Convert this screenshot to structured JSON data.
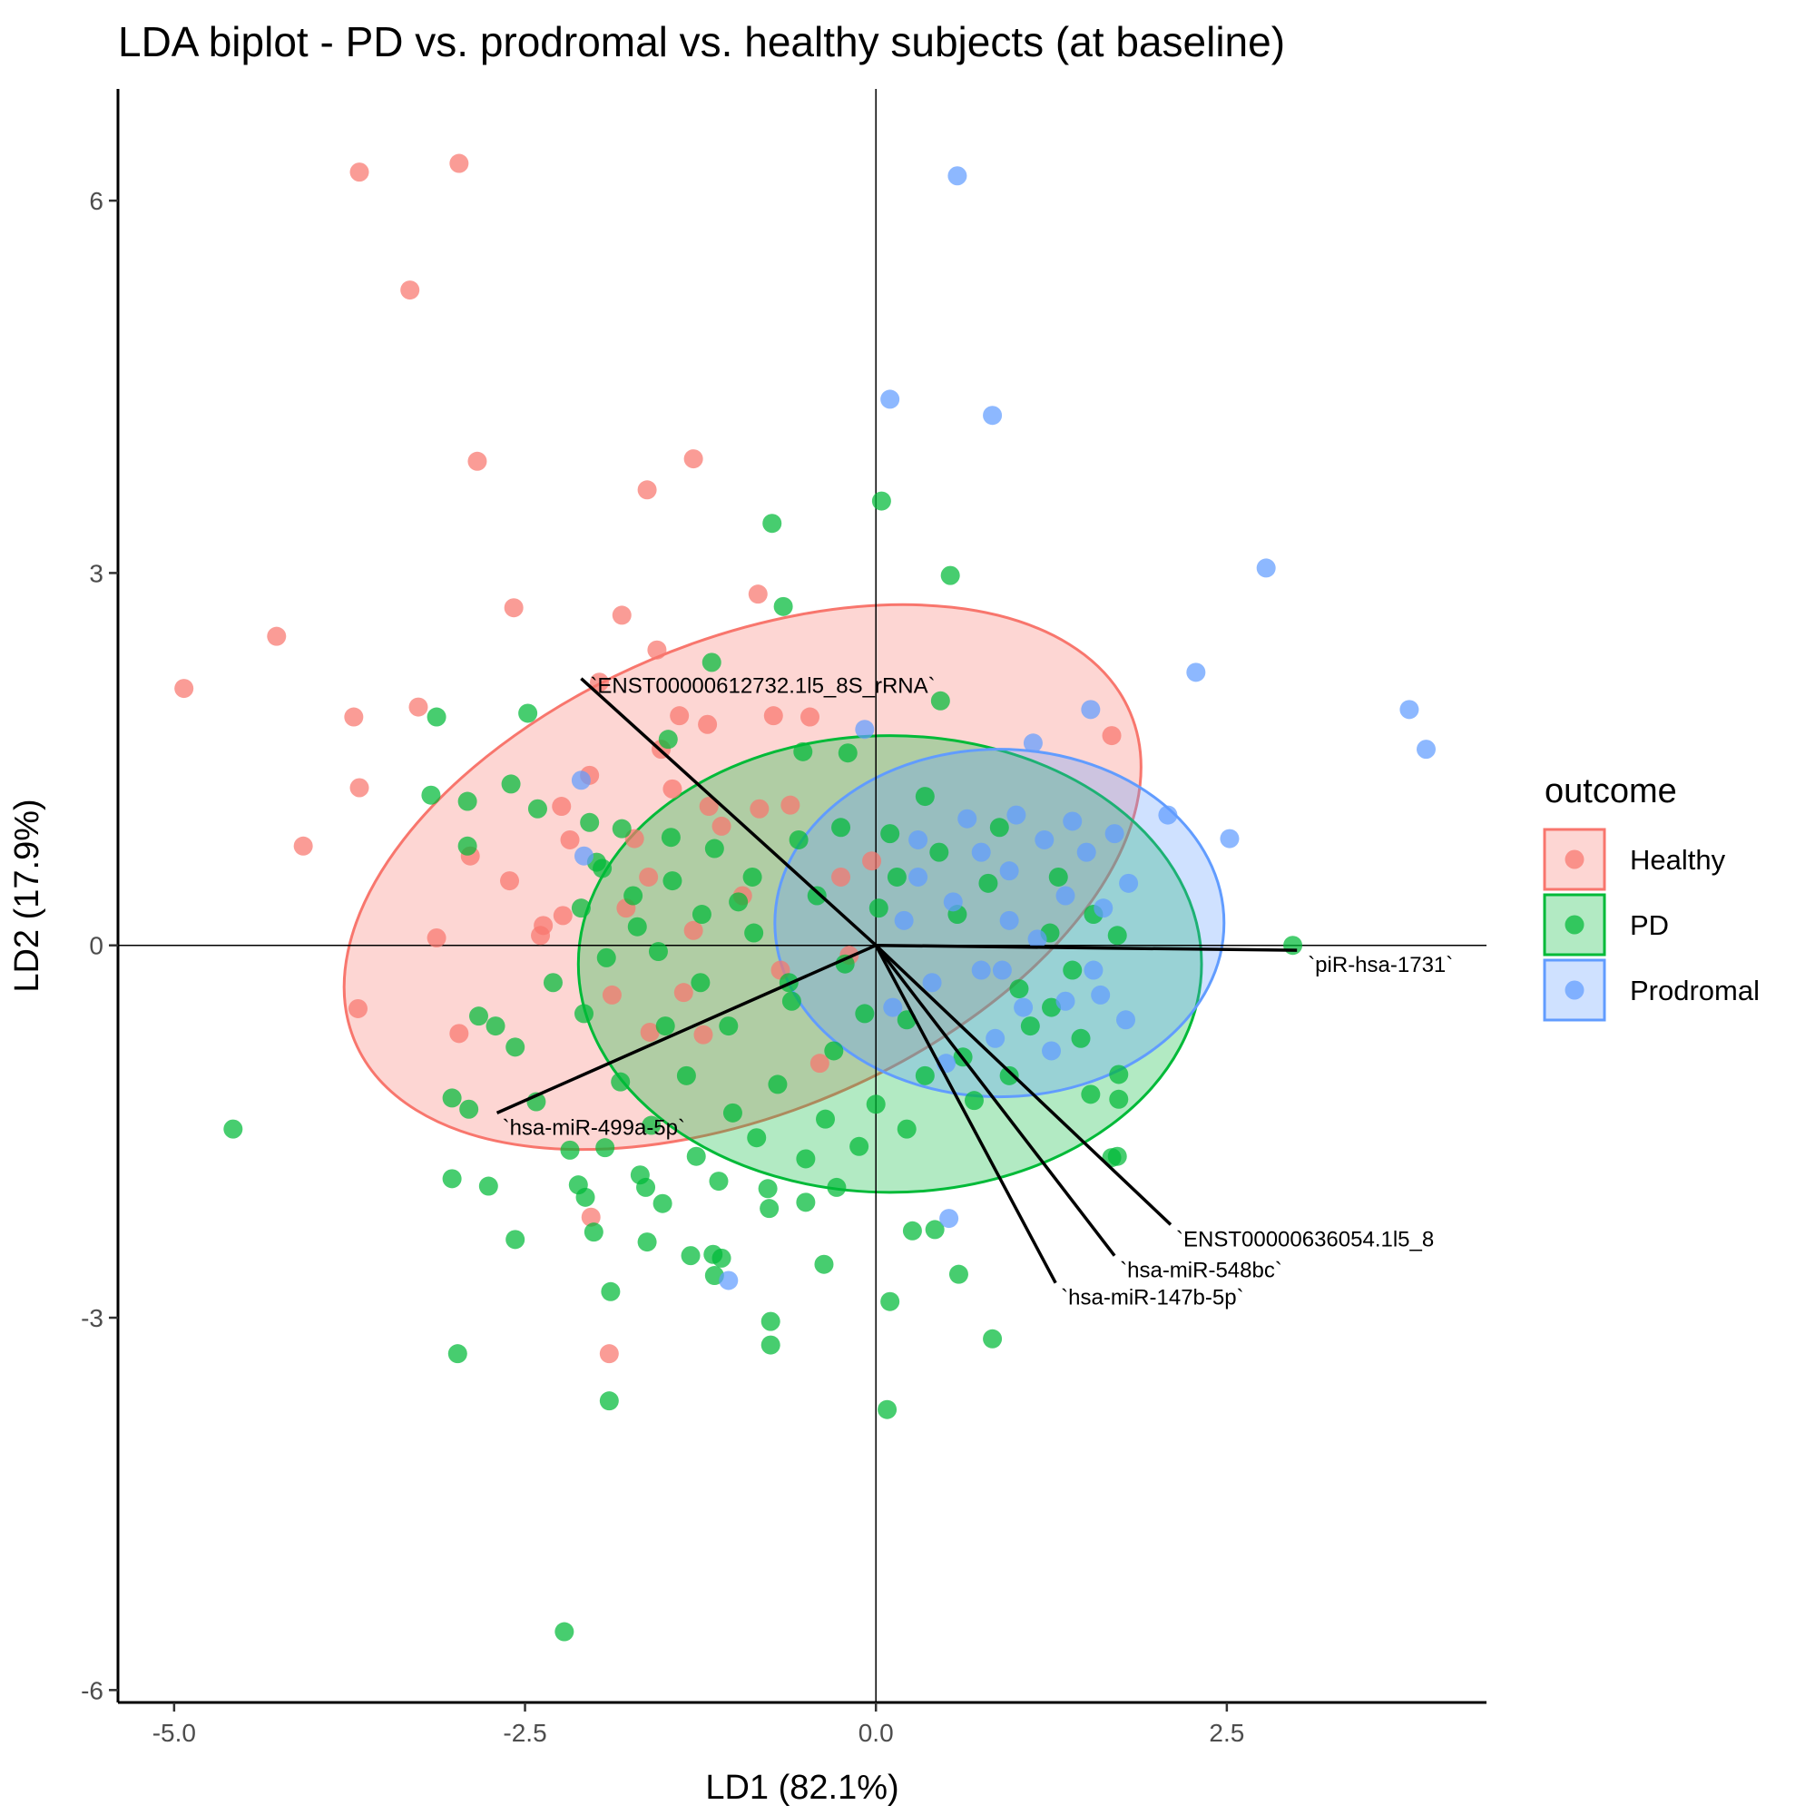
{
  "chart_data": {
    "type": "scatter",
    "title": "LDA biplot - PD vs. prodromal vs. healthy subjects (at baseline)",
    "xlabel": "LD1 (82.1%)",
    "ylabel": "LD2 (17.9%)",
    "xlim": [
      -5.4,
      4.35
    ],
    "ylim": [
      -6.1,
      6.9
    ],
    "x_ticks": [
      -5.0,
      -2.5,
      0.0,
      2.5
    ],
    "x_tick_labels": [
      "-5.0",
      "-2.5",
      "0.0",
      "2.5"
    ],
    "y_ticks": [
      -6,
      -3,
      0,
      3,
      6
    ],
    "y_tick_labels": [
      "-6",
      "-3",
      "0",
      "3",
      "6"
    ],
    "grid": false,
    "legend": {
      "title": "outcome",
      "placement": "right",
      "entries": [
        "Healthy",
        "PD",
        "Prodromal"
      ]
    },
    "colors": {
      "Healthy": "#F8766D",
      "PD": "#00BA38",
      "Prodromal": "#619CFF"
    },
    "ellipses": [
      {
        "group": "Healthy",
        "cx": -0.95,
        "cy": 0.55,
        "rx": 3.0,
        "ry": 1.9,
        "angle_deg": -23
      },
      {
        "group": "PD",
        "cx": 0.1,
        "cy": -0.15,
        "rx": 2.22,
        "ry": 1.84,
        "angle_deg": 0
      },
      {
        "group": "Prodromal",
        "cx": 0.88,
        "cy": 0.18,
        "rx": 1.6,
        "ry": 1.4,
        "angle_deg": 0
      }
    ],
    "loadings": [
      {
        "label": "`ENST00000612732.1l5_8S_rRNA`",
        "x": -2.1,
        "y": 2.15
      },
      {
        "label": "`piR-hsa-1731`",
        "x": 3.0,
        "y": -0.04
      },
      {
        "label": "`hsa-miR-499a-5p`",
        "x": -2.7,
        "y": -1.35
      },
      {
        "label": "`ENST00000636054.1l5_8",
        "x": 2.1,
        "y": -2.25
      },
      {
        "label": "`hsa-miR-548bc`",
        "x": 1.7,
        "y": -2.5
      },
      {
        "label": "`hsa-miR-147b-5p`",
        "x": 1.28,
        "y": -2.72
      }
    ],
    "series": [
      {
        "name": "Healthy",
        "points": [
          [
            -3.68,
            6.23
          ],
          [
            -2.97,
            6.3
          ],
          [
            -3.32,
            5.28
          ],
          [
            -2.84,
            3.9
          ],
          [
            -1.3,
            3.92
          ],
          [
            -1.63,
            3.67
          ],
          [
            -2.58,
            2.72
          ],
          [
            -1.81,
            2.66
          ],
          [
            -4.27,
            2.49
          ],
          [
            -0.84,
            2.83
          ],
          [
            -4.93,
            2.07
          ],
          [
            -1.56,
            2.38
          ],
          [
            -1.97,
            2.12
          ],
          [
            -3.26,
            1.92
          ],
          [
            -3.72,
            1.84
          ],
          [
            -1.4,
            1.85
          ],
          [
            -1.2,
            1.78
          ],
          [
            -0.73,
            1.85
          ],
          [
            -1.53,
            1.58
          ],
          [
            -0.47,
            1.84
          ],
          [
            1.68,
            1.69
          ],
          [
            -3.68,
            1.27
          ],
          [
            -2.24,
            1.12
          ],
          [
            -1.19,
            1.12
          ],
          [
            -0.61,
            1.13
          ],
          [
            -4.08,
            0.8
          ],
          [
            -2.89,
            0.72
          ],
          [
            -2.18,
            0.85
          ],
          [
            -2.61,
            0.52
          ],
          [
            -3.13,
            0.06
          ],
          [
            -2.39,
            0.08
          ],
          [
            -3.69,
            -0.51
          ],
          [
            -2.97,
            -0.71
          ],
          [
            -2.37,
            0.16
          ],
          [
            -1.62,
            0.55
          ],
          [
            -1.3,
            0.12
          ],
          [
            -0.95,
            0.4
          ],
          [
            -0.68,
            -0.2
          ],
          [
            -1.88,
            -0.4
          ],
          [
            -2.23,
            0.24
          ],
          [
            -0.4,
            -0.95
          ],
          [
            -1.9,
            -3.29
          ],
          [
            -2.03,
            -2.19
          ],
          [
            -0.19,
            -0.08
          ],
          [
            -0.03,
            0.68
          ],
          [
            -1.45,
            1.26
          ],
          [
            -1.1,
            0.96
          ],
          [
            -2.04,
            1.37
          ],
          [
            -1.72,
            0.86
          ],
          [
            -0.83,
            1.1
          ],
          [
            -1.37,
            -0.38
          ],
          [
            -1.61,
            -0.7
          ],
          [
            -0.25,
            0.55
          ],
          [
            -1.78,
            0.3
          ],
          [
            -1.23,
            -0.72
          ]
        ]
      },
      {
        "name": "PD",
        "points": [
          [
            -0.74,
            3.4
          ],
          [
            0.04,
            3.58
          ],
          [
            0.53,
            2.98
          ],
          [
            -0.66,
            2.73
          ],
          [
            -1.17,
            2.28
          ],
          [
            0.46,
            1.97
          ],
          [
            -3.13,
            1.84
          ],
          [
            -2.48,
            1.87
          ],
          [
            -3.17,
            1.21
          ],
          [
            -2.91,
            1.16
          ],
          [
            -2.6,
            1.3
          ],
          [
            -2.41,
            1.1
          ],
          [
            -2.91,
            0.8
          ],
          [
            -2.04,
            0.99
          ],
          [
            -1.81,
            0.94
          ],
          [
            -1.46,
            0.87
          ],
          [
            -4.58,
            -1.48
          ],
          [
            -2.83,
            -0.57
          ],
          [
            -2.71,
            -0.65
          ],
          [
            -2.57,
            -0.82
          ],
          [
            -2.42,
            -1.26
          ],
          [
            -3.02,
            -1.23
          ],
          [
            -2.9,
            -1.32
          ],
          [
            -3.02,
            -1.88
          ],
          [
            -2.76,
            -1.94
          ],
          [
            -2.18,
            -1.65
          ],
          [
            -2.12,
            -1.93
          ],
          [
            -1.93,
            -1.63
          ],
          [
            -2.07,
            -2.03
          ],
          [
            -2.57,
            -2.37
          ],
          [
            -2.01,
            -2.31
          ],
          [
            -1.64,
            -1.95
          ],
          [
            -1.52,
            -2.08
          ],
          [
            -1.63,
            -2.39
          ],
          [
            -1.32,
            -2.5
          ],
          [
            -1.16,
            -2.49
          ],
          [
            -1.1,
            -2.52
          ],
          [
            -1.15,
            -2.66
          ],
          [
            -0.75,
            -3.03
          ],
          [
            -0.75,
            -3.22
          ],
          [
            -0.76,
            -2.12
          ],
          [
            -0.77,
            -1.96
          ],
          [
            -0.5,
            -2.07
          ],
          [
            -0.37,
            -2.57
          ],
          [
            -1.89,
            -2.79
          ],
          [
            -2.98,
            -3.29
          ],
          [
            -1.9,
            -3.67
          ],
          [
            -2.22,
            -5.53
          ],
          [
            0.08,
            -3.74
          ],
          [
            0.1,
            -2.87
          ],
          [
            0.59,
            -2.65
          ],
          [
            0.83,
            -3.17
          ],
          [
            1.53,
            -1.2
          ],
          [
            1.72,
            -1.7
          ],
          [
            1.68,
            -1.71
          ],
          [
            1.73,
            -1.04
          ],
          [
            1.73,
            -1.24
          ],
          [
            0.42,
            -2.29
          ],
          [
            0.26,
            -2.3
          ],
          [
            2.97,
            0.0
          ],
          [
            1.72,
            0.08
          ],
          [
            1.25,
            -0.5
          ],
          [
            -0.52,
            1.56
          ],
          [
            -0.2,
            1.55
          ],
          [
            -1.48,
            1.66
          ],
          [
            -1.99,
            0.67
          ],
          [
            -1.73,
            0.4
          ],
          [
            -1.55,
            -0.05
          ],
          [
            -1.24,
            0.25
          ],
          [
            -1.05,
            -0.65
          ],
          [
            -0.87,
            0.1
          ],
          [
            -0.6,
            -0.45
          ],
          [
            -0.42,
            0.4
          ],
          [
            -0.22,
            -0.15
          ],
          [
            0.02,
            0.3
          ],
          [
            0.22,
            -0.6
          ],
          [
            0.45,
            0.75
          ],
          [
            0.62,
            -0.9
          ],
          [
            0.8,
            0.5
          ],
          [
            1.02,
            -0.35
          ],
          [
            1.24,
            0.1
          ],
          [
            1.46,
            -0.75
          ],
          [
            -1.35,
            -1.05
          ],
          [
            -1.02,
            -1.35
          ],
          [
            -0.7,
            -1.12
          ],
          [
            -0.36,
            -1.4
          ],
          [
            0.0,
            -1.28
          ],
          [
            0.35,
            -1.05
          ],
          [
            0.7,
            -1.25
          ],
          [
            -1.82,
            -1.1
          ],
          [
            -1.6,
            -1.45
          ],
          [
            -1.28,
            -1.7
          ],
          [
            -0.85,
            -1.55
          ],
          [
            -0.5,
            -1.72
          ],
          [
            -0.12,
            -1.62
          ],
          [
            0.22,
            -1.48
          ],
          [
            -2.08,
            -0.55
          ],
          [
            -1.92,
            -0.1
          ],
          [
            -1.7,
            0.15
          ],
          [
            -1.45,
            0.52
          ],
          [
            -1.15,
            0.78
          ],
          [
            -0.88,
            0.55
          ],
          [
            -0.55,
            0.85
          ],
          [
            -0.25,
            0.95
          ],
          [
            0.1,
            0.9
          ],
          [
            0.35,
            1.2
          ],
          [
            -2.3,
            -0.3
          ],
          [
            -2.1,
            0.3
          ],
          [
            -1.95,
            0.62
          ],
          [
            1.4,
            -0.2
          ],
          [
            1.1,
            -0.65
          ],
          [
            0.95,
            -1.05
          ],
          [
            1.55,
            0.25
          ],
          [
            -0.3,
            -0.85
          ],
          [
            -0.62,
            -0.3
          ],
          [
            -0.98,
            0.35
          ],
          [
            -1.25,
            -0.3
          ],
          [
            -1.5,
            -0.65
          ],
          [
            0.58,
            0.25
          ],
          [
            0.15,
            0.55
          ],
          [
            -0.08,
            -0.55
          ],
          [
            0.88,
            0.95
          ],
          [
            1.3,
            0.55
          ],
          [
            -1.68,
            -1.85
          ],
          [
            -1.12,
            -1.9
          ],
          [
            -0.28,
            -1.95
          ]
        ]
      },
      {
        "name": "Prodromal",
        "points": [
          [
            0.58,
            6.2
          ],
          [
            0.1,
            4.4
          ],
          [
            0.83,
            4.27
          ],
          [
            2.78,
            3.04
          ],
          [
            2.28,
            2.2
          ],
          [
            1.53,
            1.9
          ],
          [
            1.12,
            1.63
          ],
          [
            3.8,
            1.9
          ],
          [
            3.92,
            1.58
          ],
          [
            2.08,
            1.05
          ],
          [
            2.52,
            0.86
          ],
          [
            -0.08,
            1.74
          ],
          [
            0.52,
            -2.2
          ],
          [
            -1.05,
            -2.7
          ],
          [
            -2.1,
            1.33
          ],
          [
            -2.08,
            0.72
          ],
          [
            0.3,
            0.85
          ],
          [
            0.55,
            0.35
          ],
          [
            0.75,
            -0.2
          ],
          [
            0.95,
            0.6
          ],
          [
            1.15,
            0.05
          ],
          [
            1.35,
            -0.45
          ],
          [
            1.5,
            0.75
          ],
          [
            1.62,
            0.3
          ],
          [
            1.78,
            -0.6
          ],
          [
            1.2,
            0.85
          ],
          [
            0.85,
            -0.75
          ],
          [
            0.4,
            -0.3
          ],
          [
            0.2,
            0.2
          ],
          [
            1.0,
            1.05
          ],
          [
            1.4,
            1.0
          ],
          [
            1.7,
            0.9
          ],
          [
            1.55,
            -0.2
          ],
          [
            1.25,
            -0.85
          ],
          [
            0.65,
            1.02
          ],
          [
            0.95,
            0.2
          ],
          [
            0.3,
            0.55
          ],
          [
            0.12,
            -0.5
          ],
          [
            1.05,
            -0.5
          ],
          [
            1.8,
            0.5
          ],
          [
            0.5,
            -0.95
          ],
          [
            0.75,
            0.75
          ],
          [
            1.35,
            0.4
          ],
          [
            0.9,
            -0.2
          ],
          [
            1.6,
            -0.4
          ]
        ]
      }
    ]
  }
}
